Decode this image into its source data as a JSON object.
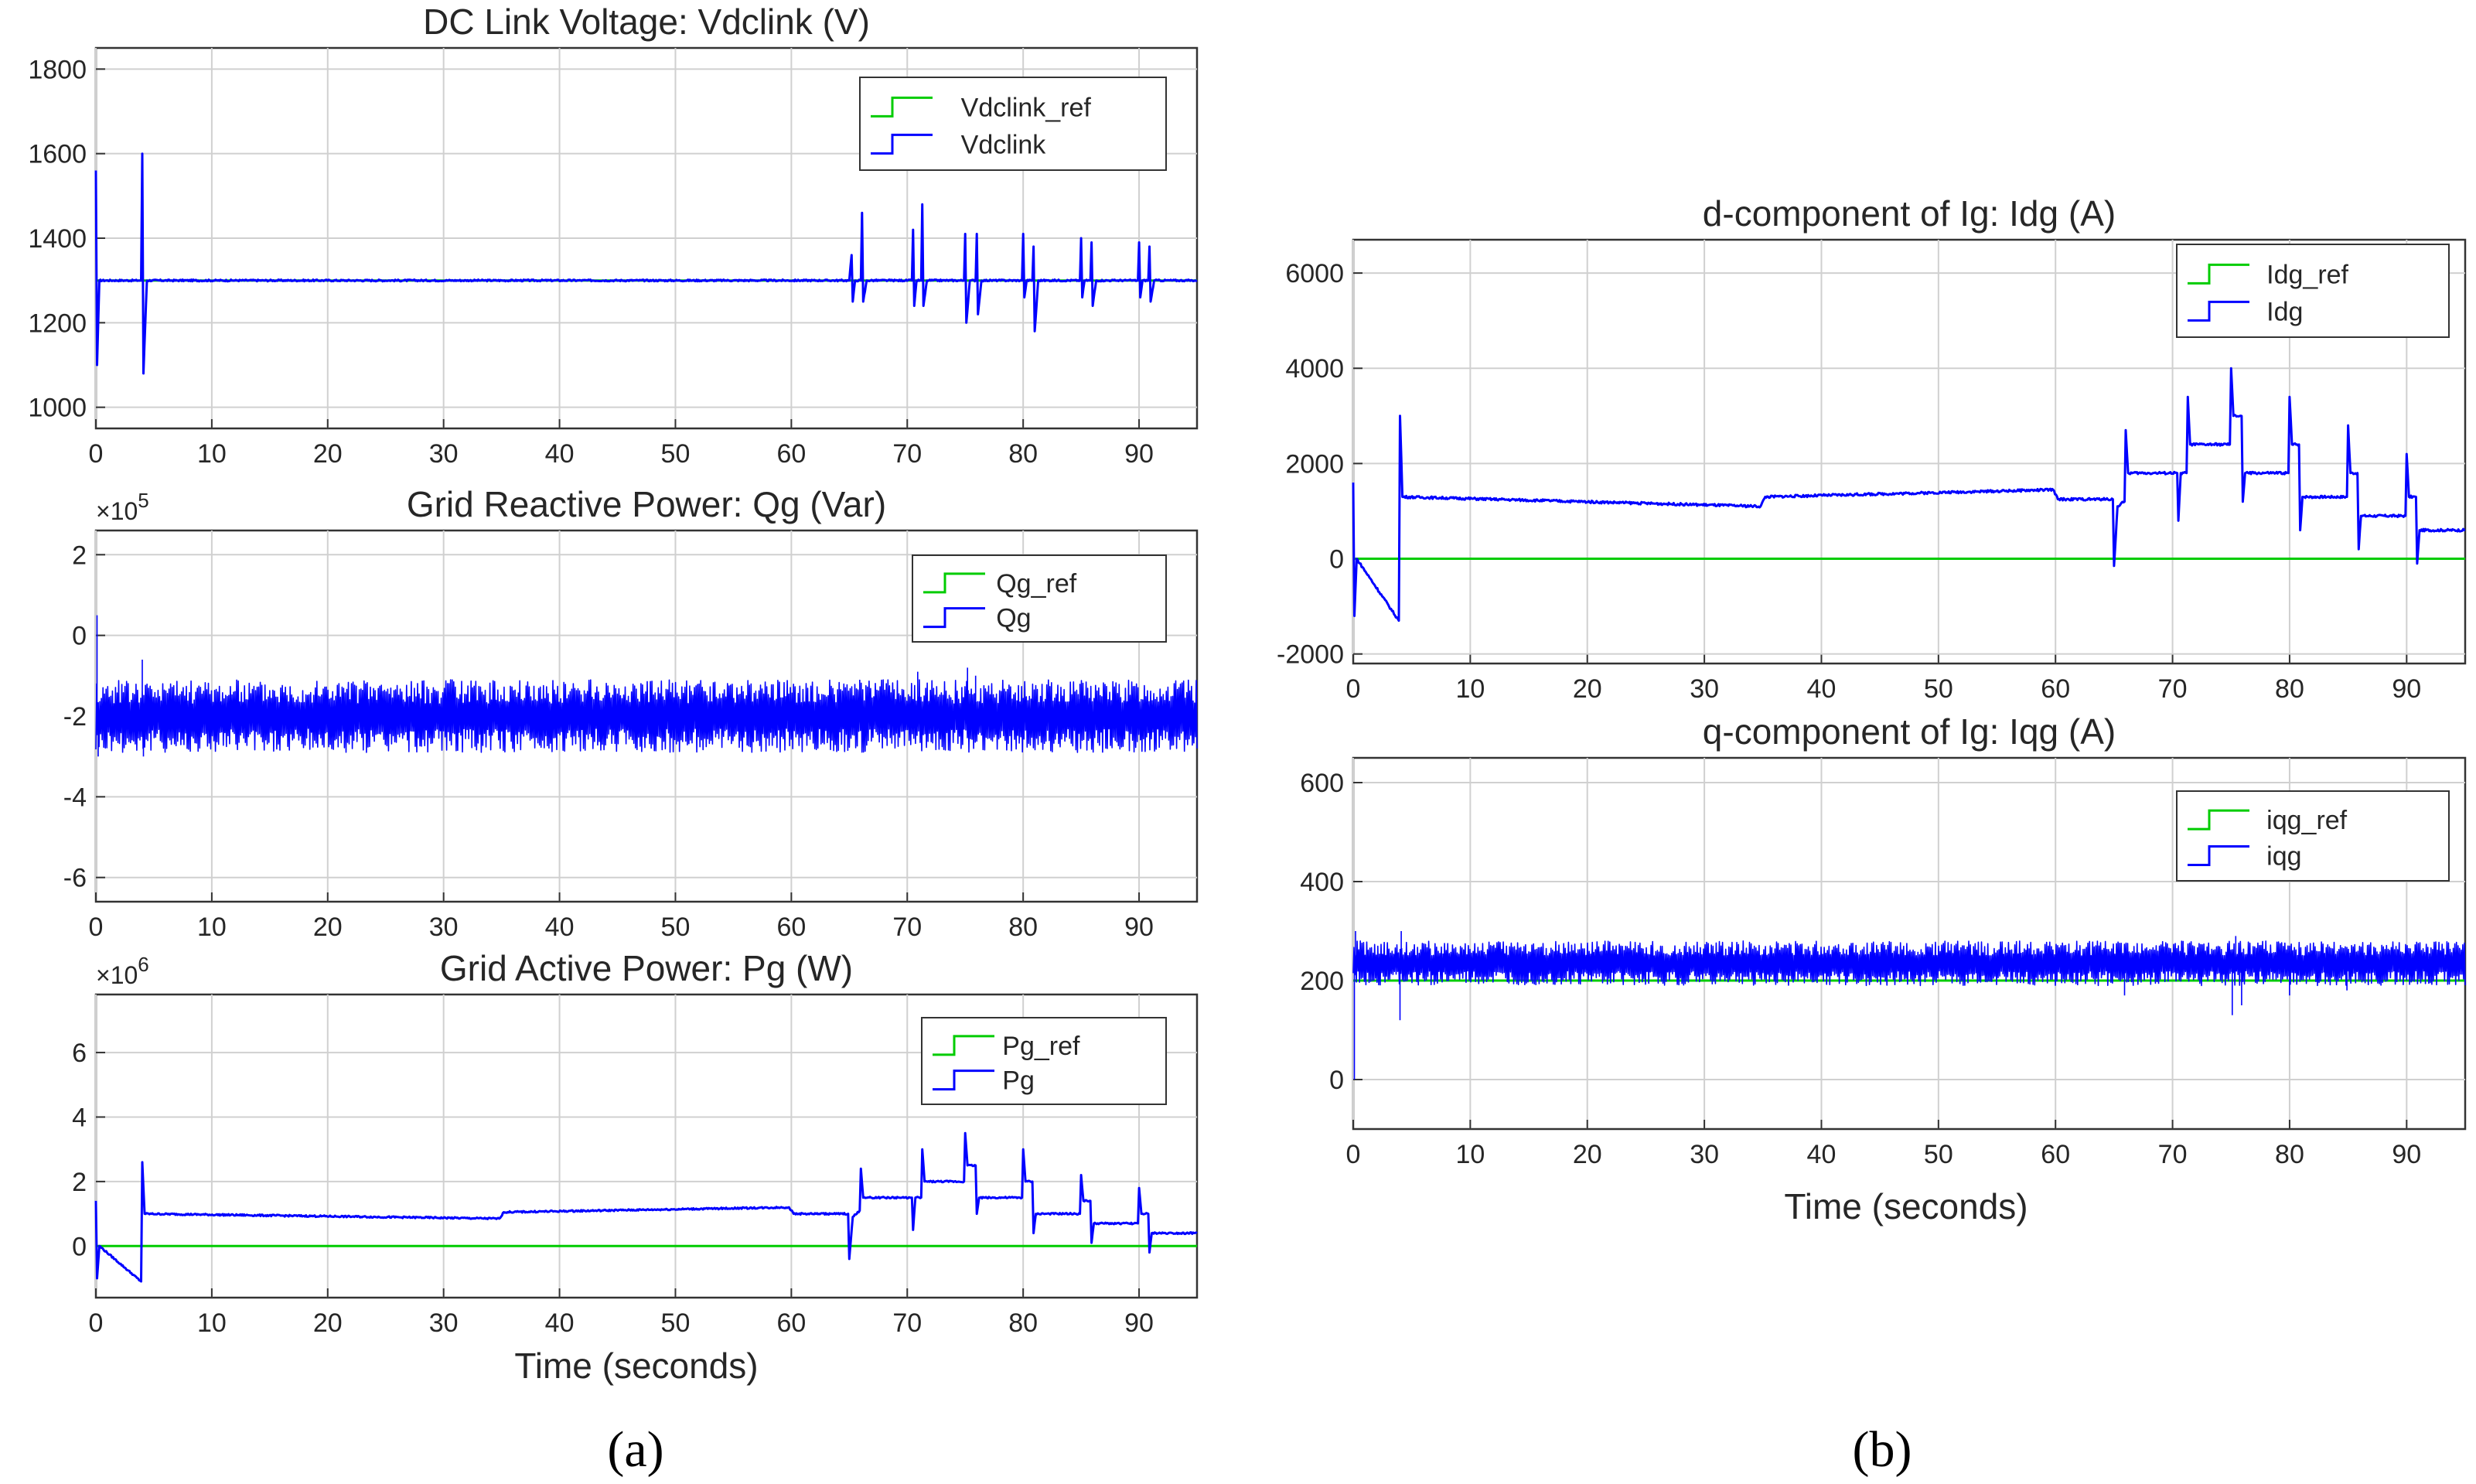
{
  "captions": {
    "a": "(a)",
    "b": "(b)"
  },
  "xlabel": "Time (seconds)",
  "chart_data": [
    {
      "id": "vdc",
      "type": "line",
      "title": "DC Link Voltage: Vdclink (V)",
      "xlabel": "",
      "ylabel": "",
      "exponent": "",
      "xlim": [
        0,
        95
      ],
      "ylim": [
        950,
        1850
      ],
      "xticks": [
        0,
        10,
        20,
        30,
        40,
        50,
        60,
        70,
        80,
        90
      ],
      "yticks": [
        1000,
        1200,
        1400,
        1600,
        1800
      ],
      "ytick_labels": [
        "1000",
        "1200",
        "1400",
        "1600",
        "1800"
      ],
      "legend": [
        "Vdclink_ref",
        "Vdclink"
      ],
      "legend_position": "top-right",
      "series": [
        {
          "name": "Vdclink_ref",
          "color": "#00cc00",
          "points": [
            [
              0,
              1300
            ],
            [
              95,
              1300
            ]
          ]
        },
        {
          "name": "Vdclink",
          "color": "#0000ff",
          "noise": 4,
          "points": [
            [
              0,
              1560
            ],
            [
              0.1,
              1100
            ],
            [
              0.3,
              1300
            ],
            [
              3.9,
              1300
            ],
            [
              4.0,
              1600
            ],
            [
              4.1,
              1080
            ],
            [
              4.4,
              1300
            ],
            [
              65,
              1300
            ],
            [
              65.2,
              1360
            ],
            [
              65.3,
              1250
            ],
            [
              65.5,
              1300
            ],
            [
              66,
              1300
            ],
            [
              66.1,
              1460
            ],
            [
              66.2,
              1250
            ],
            [
              66.5,
              1300
            ],
            [
              70.4,
              1300
            ],
            [
              70.5,
              1420
            ],
            [
              70.6,
              1240
            ],
            [
              70.8,
              1300
            ],
            [
              71.2,
              1300
            ],
            [
              71.3,
              1480
            ],
            [
              71.4,
              1240
            ],
            [
              71.7,
              1300
            ],
            [
              74.9,
              1300
            ],
            [
              75.0,
              1410
            ],
            [
              75.1,
              1200
            ],
            [
              75.4,
              1300
            ],
            [
              75.9,
              1300
            ],
            [
              76.0,
              1410
            ],
            [
              76.1,
              1220
            ],
            [
              76.4,
              1300
            ],
            [
              79.9,
              1300
            ],
            [
              80.0,
              1410
            ],
            [
              80.1,
              1260
            ],
            [
              80.3,
              1300
            ],
            [
              80.8,
              1300
            ],
            [
              80.9,
              1380
            ],
            [
              81.0,
              1180
            ],
            [
              81.3,
              1300
            ],
            [
              84.9,
              1300
            ],
            [
              85.0,
              1400
            ],
            [
              85.1,
              1260
            ],
            [
              85.3,
              1300
            ],
            [
              85.8,
              1300
            ],
            [
              85.9,
              1390
            ],
            [
              86.0,
              1240
            ],
            [
              86.3,
              1300
            ],
            [
              89.9,
              1300
            ],
            [
              90.0,
              1390
            ],
            [
              90.1,
              1260
            ],
            [
              90.3,
              1300
            ],
            [
              90.8,
              1300
            ],
            [
              90.9,
              1380
            ],
            [
              91.0,
              1250
            ],
            [
              91.3,
              1300
            ],
            [
              95,
              1300
            ]
          ]
        }
      ]
    },
    {
      "id": "qg",
      "type": "line",
      "title": "Grid Reactive Power: Qg (Var)",
      "xlabel": "",
      "ylabel": "",
      "exponent": "×10",
      "exponent_power": "5",
      "xlim": [
        0,
        95
      ],
      "ylim": [
        -6.6,
        2.6
      ],
      "xticks": [
        0,
        10,
        20,
        30,
        40,
        50,
        60,
        70,
        80,
        90
      ],
      "yticks": [
        -6,
        -4,
        -2,
        0,
        2
      ],
      "ytick_labels": [
        "-6",
        "-4",
        "-2",
        "0",
        "2"
      ],
      "legend": [
        "Qg_ref",
        "Qg"
      ],
      "legend_position": "top-right",
      "series": [
        {
          "name": "Qg_ref",
          "color": "#00cc00",
          "points": [
            [
              0,
              -2
            ],
            [
              95,
              -2
            ]
          ]
        },
        {
          "name": "Qg",
          "color": "#0000ff",
          "band": [
            -2.6,
            -1.4
          ],
          "spikes": [
            [
              0.1,
              0.5
            ],
            [
              0.2,
              -3.0
            ],
            [
              4.0,
              -0.6
            ],
            [
              4.1,
              -3.0
            ],
            [
              65.9,
              -1.1
            ],
            [
              70.9,
              -0.9
            ],
            [
              75.2,
              -0.8
            ],
            [
              75.9,
              -1.0
            ],
            [
              84.9,
              -1.2
            ]
          ]
        }
      ]
    },
    {
      "id": "pg",
      "type": "line",
      "title": "Grid Active Power: Pg (W)",
      "xlabel": "Time (seconds)",
      "ylabel": "",
      "exponent": "×10",
      "exponent_power": "6",
      "xlim": [
        0,
        95
      ],
      "ylim": [
        -1.6,
        7.8
      ],
      "xticks": [
        0,
        10,
        20,
        30,
        40,
        50,
        60,
        70,
        80,
        90
      ],
      "yticks": [
        0,
        2,
        4,
        6
      ],
      "ytick_labels": [
        "0",
        "2",
        "4",
        "6"
      ],
      "legend": [
        "Pg_ref",
        "Pg"
      ],
      "legend_position": "top-right",
      "series": [
        {
          "name": "Pg_ref",
          "color": "#00cc00",
          "points": [
            [
              0,
              0
            ],
            [
              95,
              0
            ]
          ]
        },
        {
          "name": "Pg",
          "color": "#0000ff",
          "noise": 0.05,
          "points": [
            [
              0,
              1.4
            ],
            [
              0.1,
              -1.0
            ],
            [
              0.3,
              0.0
            ],
            [
              3.9,
              -1.1
            ],
            [
              4.0,
              2.6
            ],
            [
              4.2,
              1.0
            ],
            [
              34.8,
              0.85
            ],
            [
              35.2,
              1.05
            ],
            [
              59.8,
              1.2
            ],
            [
              60.2,
              1.0
            ],
            [
              64.9,
              1.0
            ],
            [
              65.0,
              -0.4
            ],
            [
              65.3,
              0.9
            ],
            [
              65.9,
              1.1
            ],
            [
              66.0,
              2.4
            ],
            [
              66.2,
              1.5
            ],
            [
              70.4,
              1.5
            ],
            [
              70.5,
              0.5
            ],
            [
              70.7,
              1.5
            ],
            [
              71.2,
              1.5
            ],
            [
              71.3,
              3.0
            ],
            [
              71.5,
              2.0
            ],
            [
              74.9,
              2.0
            ],
            [
              75.0,
              3.5
            ],
            [
              75.2,
              2.5
            ],
            [
              75.9,
              2.5
            ],
            [
              76.0,
              1.0
            ],
            [
              76.2,
              1.5
            ],
            [
              79.9,
              1.5
            ],
            [
              80.0,
              3.0
            ],
            [
              80.2,
              2.0
            ],
            [
              80.8,
              2.0
            ],
            [
              80.9,
              0.4
            ],
            [
              81.1,
              1.0
            ],
            [
              84.9,
              1.0
            ],
            [
              85.0,
              2.2
            ],
            [
              85.2,
              1.4
            ],
            [
              85.8,
              1.4
            ],
            [
              85.9,
              0.1
            ],
            [
              86.1,
              0.7
            ],
            [
              89.9,
              0.7
            ],
            [
              90.0,
              1.8
            ],
            [
              90.2,
              1.0
            ],
            [
              90.8,
              1.0
            ],
            [
              90.9,
              -0.2
            ],
            [
              91.1,
              0.4
            ],
            [
              95,
              0.4
            ]
          ]
        }
      ]
    },
    {
      "id": "idg",
      "type": "line",
      "title": "d-component of Ig: Idg (A)",
      "xlabel": "",
      "ylabel": "",
      "exponent": "",
      "xlim": [
        0,
        95
      ],
      "ylim": [
        -2200,
        6700
      ],
      "xticks": [
        0,
        10,
        20,
        30,
        40,
        50,
        60,
        70,
        80,
        90
      ],
      "yticks": [
        -2000,
        0,
        2000,
        4000,
        6000
      ],
      "ytick_labels": [
        "-2000",
        "0",
        "2000",
        "4000",
        "6000"
      ],
      "legend": [
        "Idg_ref",
        "Idg"
      ],
      "legend_position": "top-right",
      "series": [
        {
          "name": "Idg_ref",
          "color": "#00cc00",
          "points": [
            [
              0,
              0
            ],
            [
              95,
              0
            ]
          ]
        },
        {
          "name": "Idg",
          "color": "#0000ff",
          "noise": 50,
          "points": [
            [
              0,
              1600
            ],
            [
              0.1,
              -1200
            ],
            [
              0.3,
              0
            ],
            [
              3.9,
              -1300
            ],
            [
              4.0,
              3000
            ],
            [
              4.2,
              1300
            ],
            [
              34.8,
              1100
            ],
            [
              35.2,
              1300
            ],
            [
              59.8,
              1450
            ],
            [
              60.2,
              1250
            ],
            [
              64.9,
              1250
            ],
            [
              65.0,
              -150
            ],
            [
              65.3,
              1100
            ],
            [
              65.9,
              1200
            ],
            [
              66.0,
              2700
            ],
            [
              66.2,
              1800
            ],
            [
              70.4,
              1800
            ],
            [
              70.5,
              800
            ],
            [
              70.7,
              1800
            ],
            [
              71.2,
              1800
            ],
            [
              71.3,
              3400
            ],
            [
              71.5,
              2400
            ],
            [
              74.9,
              2400
            ],
            [
              75.0,
              4000
            ],
            [
              75.2,
              3000
            ],
            [
              75.9,
              3000
            ],
            [
              76.0,
              1200
            ],
            [
              76.2,
              1800
            ],
            [
              79.9,
              1800
            ],
            [
              80.0,
              3400
            ],
            [
              80.2,
              2400
            ],
            [
              80.8,
              2400
            ],
            [
              80.9,
              600
            ],
            [
              81.1,
              1300
            ],
            [
              84.9,
              1300
            ],
            [
              85.0,
              2800
            ],
            [
              85.2,
              1800
            ],
            [
              85.8,
              1800
            ],
            [
              85.9,
              200
            ],
            [
              86.1,
              900
            ],
            [
              89.9,
              900
            ],
            [
              90.0,
              2200
            ],
            [
              90.2,
              1300
            ],
            [
              90.8,
              1300
            ],
            [
              90.9,
              -100
            ],
            [
              91.1,
              600
            ],
            [
              95,
              600
            ]
          ]
        }
      ]
    },
    {
      "id": "iqg",
      "type": "line",
      "title": "q-component of Ig: Iqg (A)",
      "xlabel": "Time (seconds)",
      "ylabel": "",
      "exponent": "",
      "xlim": [
        0,
        95
      ],
      "ylim": [
        -100,
        650
      ],
      "xticks": [
        0,
        10,
        20,
        30,
        40,
        50,
        60,
        70,
        80,
        90
      ],
      "yticks": [
        0,
        200,
        400,
        600
      ],
      "ytick_labels": [
        "0",
        "200",
        "400",
        "600"
      ],
      "legend": [
        "iqg_ref",
        "iqg"
      ],
      "legend_position": "top-right",
      "series": [
        {
          "name": "iqg_ref",
          "color": "#00cc00",
          "points": [
            [
              0,
              200
            ],
            [
              95,
              200
            ]
          ]
        },
        {
          "name": "iqg",
          "color": "#0000ff",
          "band": [
            205,
            265
          ],
          "spikes": [
            [
              0.1,
              0
            ],
            [
              0.2,
              300
            ],
            [
              4.0,
              120
            ],
            [
              4.1,
              300
            ],
            [
              65.9,
              170
            ],
            [
              70.9,
              280
            ],
            [
              75.1,
              130
            ],
            [
              75.4,
              290
            ],
            [
              75.9,
              150
            ],
            [
              80.0,
              170
            ],
            [
              84.9,
              180
            ],
            [
              90.0,
              200
            ]
          ]
        }
      ]
    }
  ]
}
